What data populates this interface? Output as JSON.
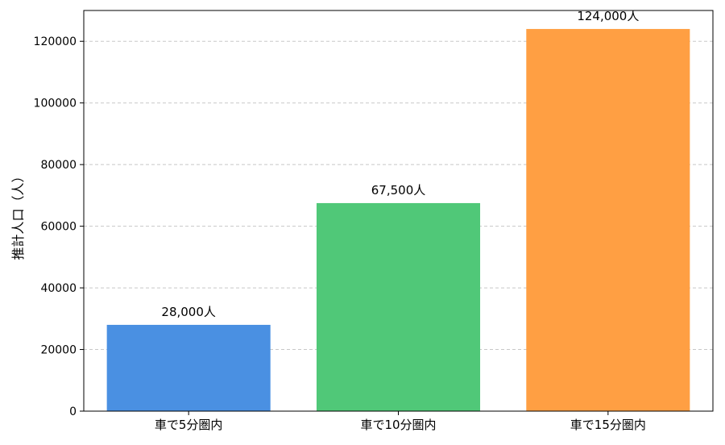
{
  "chart_data": {
    "type": "bar",
    "title": "",
    "xlabel": "",
    "ylabel": "推計人口（人）",
    "categories": [
      "車で5分圏内",
      "車で10分圏内",
      "車で15分圏内"
    ],
    "values": [
      28000,
      67500,
      124000
    ],
    "data_labels": [
      "28,000人",
      "67,500人",
      "124,000人"
    ],
    "colors": [
      "#4a90e2",
      "#50c878",
      "#ff9f43"
    ],
    "ylim": [
      0,
      130000
    ],
    "yticks": [
      0,
      20000,
      40000,
      60000,
      80000,
      100000,
      120000
    ],
    "ytick_labels": [
      "0",
      "20000",
      "40000",
      "60000",
      "80000",
      "100000",
      "120000"
    ],
    "grid": {
      "y": true,
      "x": false,
      "style": "dashed",
      "color": "#c8c8c8"
    }
  }
}
